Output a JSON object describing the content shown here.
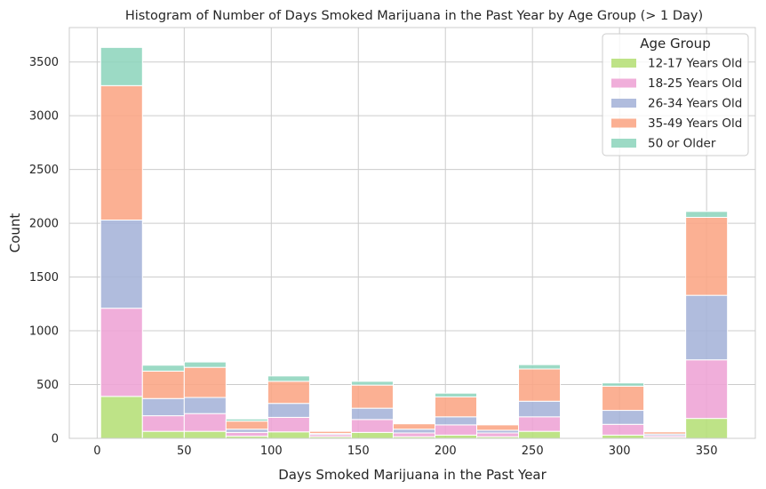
{
  "chart_data": {
    "type": "bar",
    "stacked": true,
    "title": "Histogram of Number of Days Smoked Marijuana in the Past Year by Age Group (> 1 Day)",
    "xlabel": "Days Smoked Marijuana in the Past Year",
    "ylabel": "Count",
    "xlim": [
      -16,
      378
    ],
    "ylim": [
      0,
      3820
    ],
    "xticks": [
      0,
      50,
      100,
      150,
      200,
      250,
      300,
      350
    ],
    "yticks": [
      0,
      500,
      1000,
      1500,
      2000,
      2500,
      3000,
      3500
    ],
    "grid": true,
    "legend_title": "Age Group",
    "legend_position": "top-right",
    "bin_edges": [
      2,
      26,
      50,
      74,
      98,
      122,
      146,
      170,
      194,
      218,
      242,
      266,
      290,
      314,
      338,
      362
    ],
    "series": [
      {
        "name": "12-17 Years Old",
        "color": "#b5df76",
        "values": [
          390,
          65,
          65,
          20,
          60,
          15,
          55,
          15,
          30,
          15,
          65,
          0,
          30,
          10,
          185
        ]
      },
      {
        "name": "18-25 Years Old",
        "color": "#eea3d5",
        "values": [
          820,
          145,
          165,
          35,
          135,
          20,
          120,
          35,
          95,
          35,
          135,
          0,
          100,
          15,
          545
        ]
      },
      {
        "name": "26-34 Years Old",
        "color": "#a5b3d8",
        "values": [
          820,
          160,
          150,
          30,
          130,
          10,
          105,
          35,
          75,
          25,
          145,
          0,
          130,
          15,
          600
        ]
      },
      {
        "name": "35-49 Years Old",
        "color": "#fba584",
        "values": [
          1250,
          255,
          280,
          75,
          205,
          20,
          215,
          50,
          185,
          50,
          300,
          0,
          225,
          20,
          725
        ]
      },
      {
        "name": "50 or Older",
        "color": "#8ed5bd",
        "values": [
          355,
          55,
          50,
          20,
          50,
          0,
          35,
          0,
          35,
          0,
          40,
          0,
          30,
          0,
          55
        ]
      }
    ]
  }
}
